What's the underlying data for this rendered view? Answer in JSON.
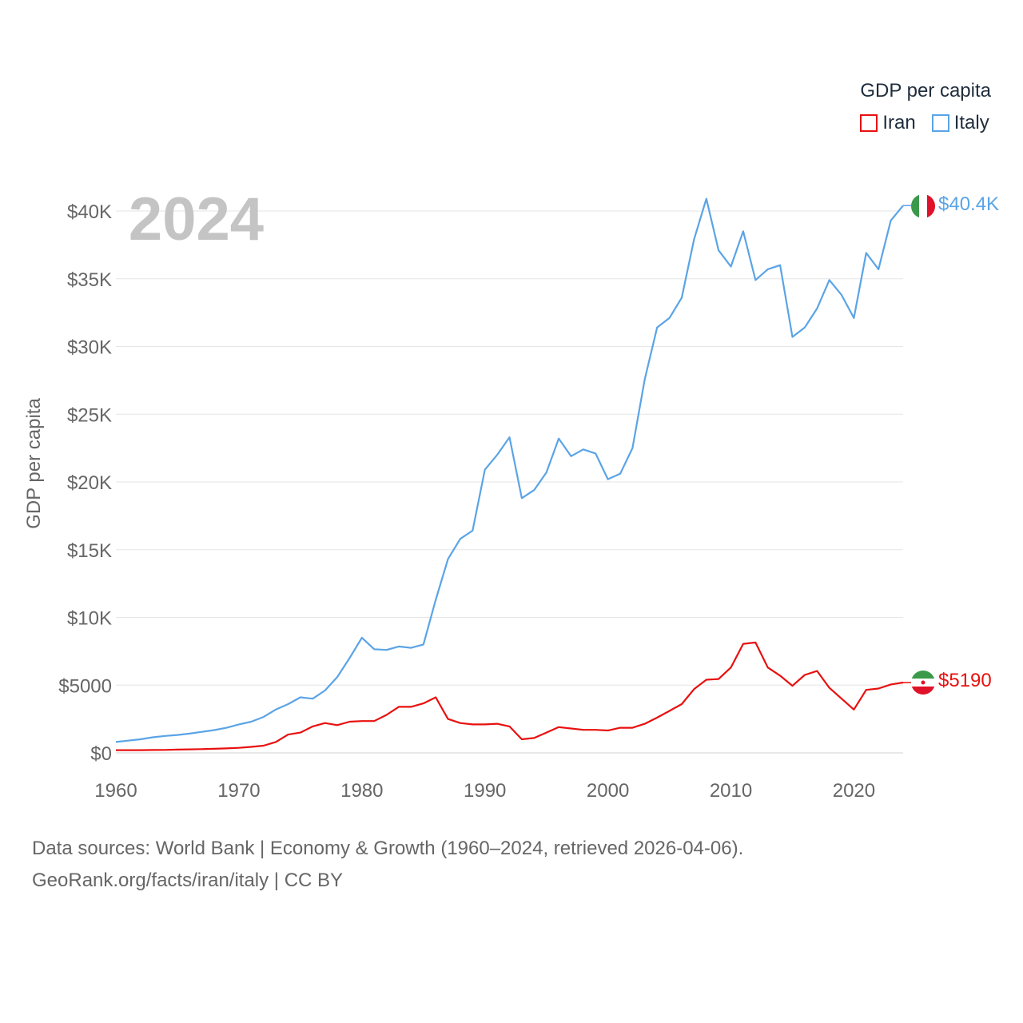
{
  "chart_data": {
    "type": "line",
    "year_label": "2024",
    "ylabel": "GDP per capita",
    "legend_title": "GDP per capita",
    "ylim": [
      0,
      42000
    ],
    "xlim": [
      1960,
      2024
    ],
    "y_ticks": [
      0,
      5000,
      10000,
      15000,
      20000,
      25000,
      30000,
      35000,
      40000
    ],
    "y_tick_labels": [
      "$0",
      "$5000",
      "$10K",
      "$15K",
      "$20K",
      "$25K",
      "$30K",
      "$35K",
      "$40K"
    ],
    "x_ticks": [
      1960,
      1970,
      1980,
      1990,
      2000,
      2010,
      2020
    ],
    "x_tick_labels": [
      "1960",
      "1970",
      "1980",
      "1990",
      "2000",
      "2010",
      "2020"
    ],
    "x": [
      1960,
      1961,
      1962,
      1963,
      1964,
      1965,
      1966,
      1967,
      1968,
      1969,
      1970,
      1971,
      1972,
      1973,
      1974,
      1975,
      1976,
      1977,
      1978,
      1979,
      1980,
      1981,
      1982,
      1983,
      1984,
      1985,
      1986,
      1987,
      1988,
      1989,
      1990,
      1991,
      1992,
      1993,
      1994,
      1995,
      1996,
      1997,
      1998,
      1999,
      2000,
      2001,
      2002,
      2003,
      2004,
      2005,
      2006,
      2007,
      2008,
      2009,
      2010,
      2011,
      2012,
      2013,
      2014,
      2015,
      2016,
      2017,
      2018,
      2019,
      2020,
      2021,
      2022,
      2023,
      2024
    ],
    "series": [
      {
        "name": "Italy",
        "color": "#5aa4e6",
        "end_label": "$40.4K",
        "values": [
          800,
          900,
          1000,
          1150,
          1250,
          1320,
          1420,
          1550,
          1680,
          1850,
          2100,
          2300,
          2650,
          3200,
          3600,
          4100,
          4000,
          4600,
          5600,
          7000,
          8500,
          7650,
          7600,
          7850,
          7750,
          8000,
          11300,
          14300,
          15800,
          16400,
          20900,
          22000,
          23300,
          18800,
          19400,
          20700,
          23200,
          21900,
          22400,
          22100,
          20200,
          20600,
          22500,
          27600,
          31400,
          32100,
          33600,
          37900,
          40900,
          37100,
          35900,
          38500,
          34900,
          35700,
          36000,
          30700,
          31400,
          32800,
          34900,
          33800,
          32100,
          36900,
          35700,
          39300,
          40400
        ]
      },
      {
        "name": "Iran",
        "color": "#e8100f",
        "end_label": "$5190",
        "values": [
          200,
          200,
          200,
          210,
          220,
          240,
          260,
          280,
          300,
          330,
          370,
          440,
          530,
          800,
          1350,
          1500,
          1950,
          2200,
          2050,
          2300,
          2350,
          2350,
          2800,
          3400,
          3400,
          3650,
          4100,
          2500,
          2200,
          2100,
          2100,
          2150,
          1950,
          1000,
          1100,
          1500,
          1900,
          1800,
          1700,
          1700,
          1650,
          1850,
          1850,
          2150,
          2600,
          3100,
          3600,
          4700,
          5400,
          5450,
          6300,
          8050,
          8150,
          6300,
          5700,
          4950,
          5750,
          6050,
          4800,
          4000,
          3200,
          4650,
          4750,
          5050,
          5190
        ]
      }
    ]
  },
  "footer": {
    "line1": "Data sources: World Bank | Economy & Growth (1960–2024, retrieved 2026-04-06).",
    "line2": "GeoRank.org/facts/iran/italy | CC BY"
  }
}
